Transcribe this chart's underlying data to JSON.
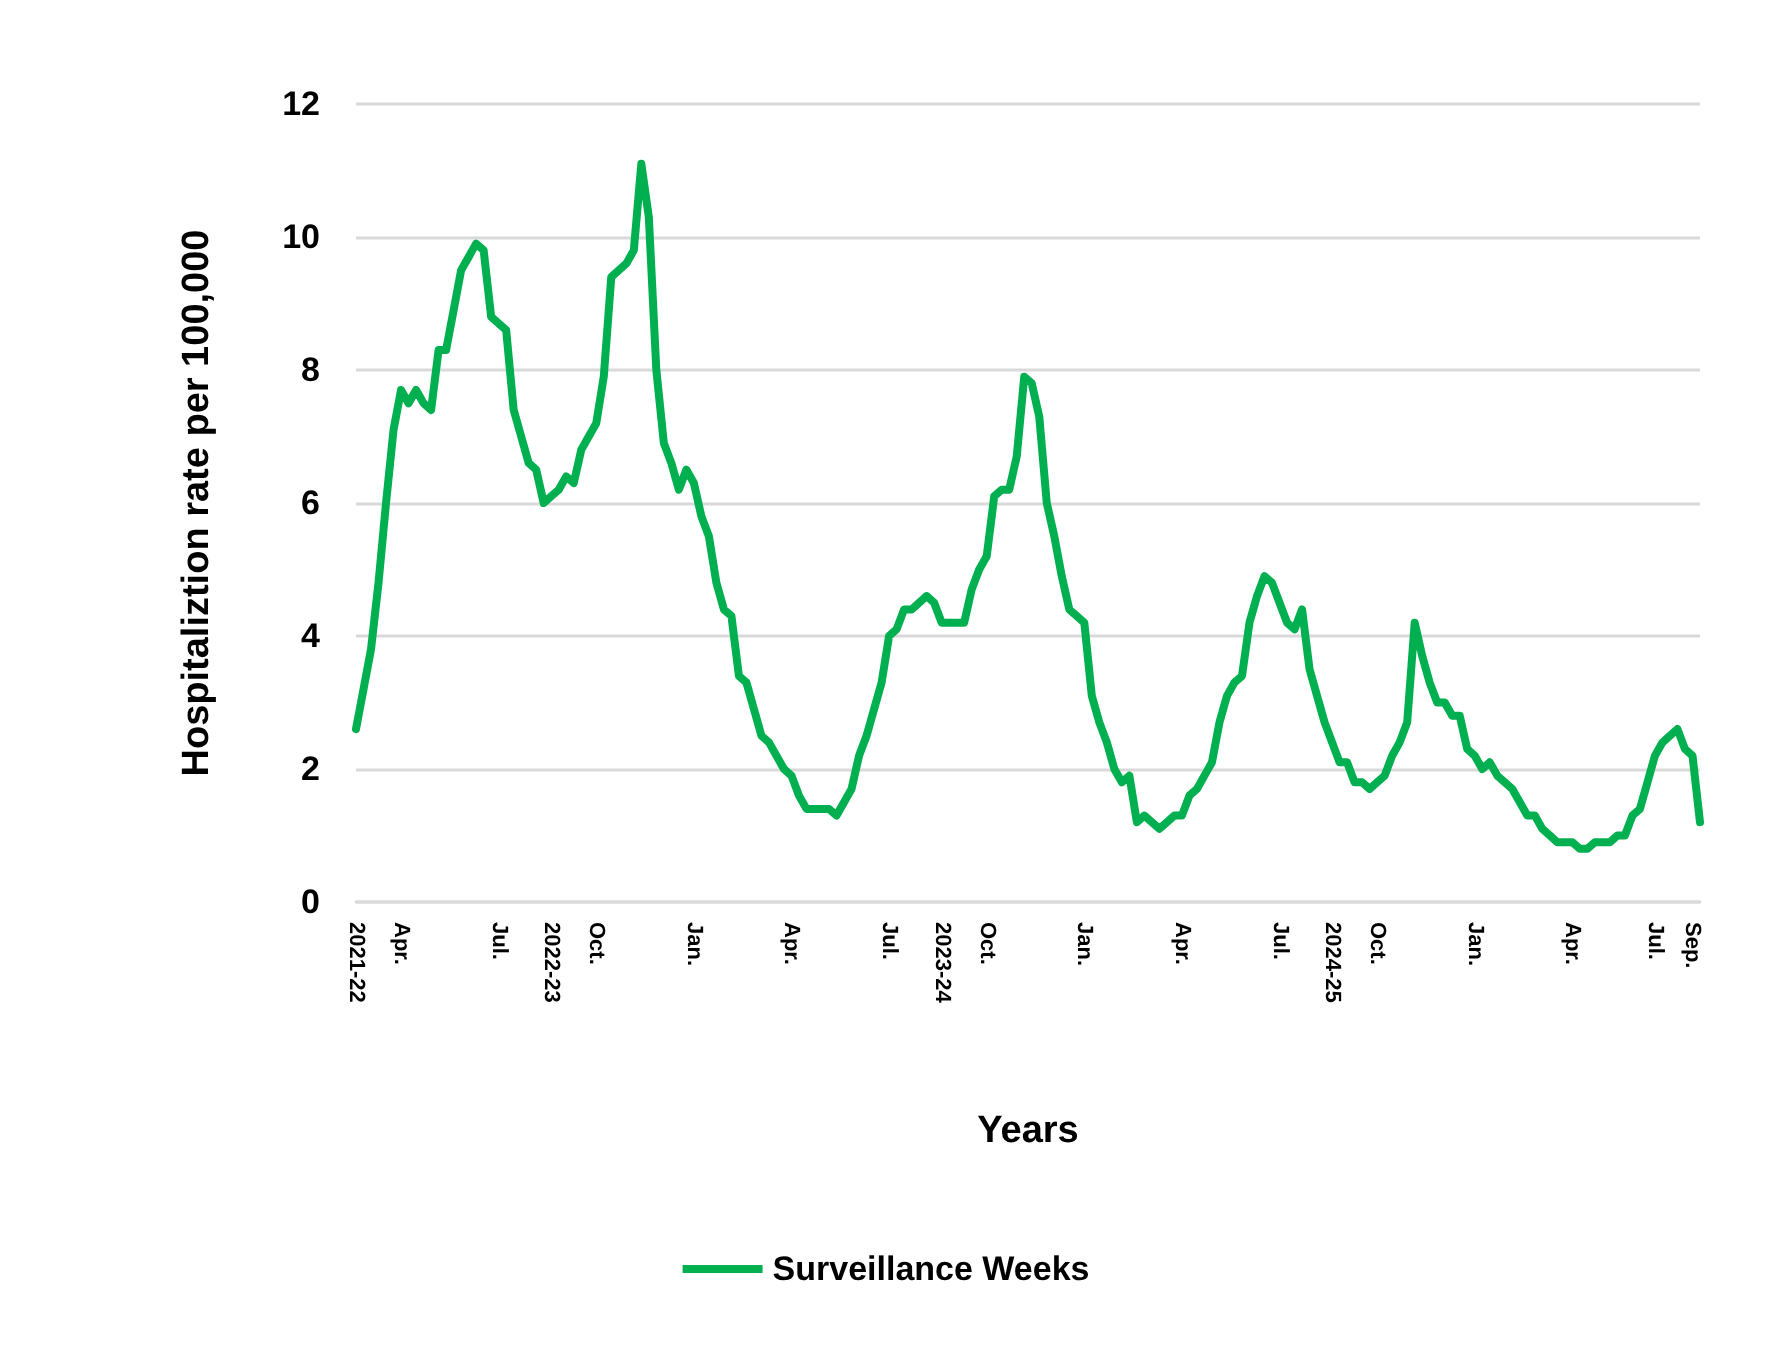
{
  "chart_data": {
    "type": "line",
    "xlabel": "Years",
    "ylabel": "Hospitaliztion rate per 100,000",
    "categories": [
      "2021-22",
      null,
      null,
      null,
      null,
      null,
      "Apr.",
      null,
      null,
      null,
      null,
      null,
      null,
      null,
      null,
      null,
      null,
      null,
      null,
      "Jul.",
      null,
      null,
      null,
      null,
      null,
      null,
      "2022-23",
      null,
      null,
      null,
      null,
      null,
      "Oct.",
      null,
      null,
      null,
      null,
      null,
      null,
      null,
      null,
      null,
      null,
      null,
      null,
      "Jan.",
      null,
      null,
      null,
      null,
      null,
      null,
      null,
      null,
      null,
      null,
      null,
      null,
      "Apr.",
      null,
      null,
      null,
      null,
      null,
      null,
      null,
      null,
      null,
      null,
      null,
      null,
      "Jul.",
      null,
      null,
      null,
      null,
      null,
      null,
      "2023-24",
      null,
      null,
      null,
      null,
      null,
      "Oct.",
      null,
      null,
      null,
      null,
      null,
      null,
      null,
      null,
      null,
      null,
      null,
      null,
      "Jan.",
      null,
      null,
      null,
      null,
      null,
      null,
      null,
      null,
      null,
      null,
      null,
      null,
      "Apr.",
      null,
      null,
      null,
      null,
      null,
      null,
      null,
      null,
      null,
      null,
      null,
      null,
      "Jul.",
      null,
      null,
      null,
      null,
      null,
      null,
      "2024-25",
      null,
      null,
      null,
      null,
      null,
      "Oct.",
      null,
      null,
      null,
      null,
      null,
      null,
      null,
      null,
      null,
      null,
      null,
      null,
      "Jan.",
      null,
      null,
      null,
      null,
      null,
      null,
      null,
      null,
      null,
      null,
      null,
      null,
      "Apr.",
      null,
      null,
      null,
      null,
      null,
      null,
      null,
      null,
      null,
      null,
      "Jul.",
      null,
      null,
      null,
      null,
      "Sep.",
      null
    ],
    "series": [
      {
        "name": "Surveillance Weeks",
        "color": "#00b050",
        "values": [
          2.6,
          3.2,
          3.8,
          4.8,
          6.0,
          7.1,
          7.7,
          7.5,
          7.7,
          7.5,
          7.4,
          8.3,
          8.3,
          8.9,
          9.5,
          9.7,
          9.9,
          9.8,
          8.8,
          8.7,
          8.6,
          7.4,
          7.0,
          6.6,
          6.5,
          6.0,
          6.1,
          6.2,
          6.4,
          6.3,
          6.8,
          7.0,
          7.2,
          7.9,
          9.4,
          9.5,
          9.6,
          9.8,
          11.1,
          10.3,
          8.0,
          6.9,
          6.6,
          6.2,
          6.5,
          6.3,
          5.8,
          5.5,
          4.8,
          4.4,
          4.3,
          3.4,
          3.3,
          2.9,
          2.5,
          2.4,
          2.2,
          2.0,
          1.9,
          1.6,
          1.4,
          1.4,
          1.4,
          1.4,
          1.3,
          1.5,
          1.7,
          2.2,
          2.5,
          2.9,
          3.3,
          4.0,
          4.1,
          4.4,
          4.4,
          4.5,
          4.6,
          4.5,
          4.2,
          4.2,
          4.2,
          4.2,
          4.7,
          5.0,
          5.2,
          6.1,
          6.2,
          6.2,
          6.7,
          7.9,
          7.8,
          7.3,
          6.0,
          5.5,
          4.9,
          4.4,
          4.3,
          4.2,
          3.1,
          2.7,
          2.4,
          2.0,
          1.8,
          1.9,
          1.2,
          1.3,
          1.2,
          1.1,
          1.2,
          1.3,
          1.3,
          1.6,
          1.7,
          1.9,
          2.1,
          2.7,
          3.1,
          3.3,
          3.4,
          4.2,
          4.6,
          4.9,
          4.8,
          4.5,
          4.2,
          4.1,
          4.4,
          3.5,
          3.1,
          2.7,
          2.4,
          2.1,
          2.1,
          1.8,
          1.8,
          1.7,
          1.8,
          1.9,
          2.2,
          2.4,
          2.7,
          4.2,
          3.7,
          3.3,
          3.0,
          3.0,
          2.8,
          2.8,
          2.3,
          2.2,
          2.0,
          2.1,
          1.9,
          1.8,
          1.7,
          1.5,
          1.3,
          1.3,
          1.1,
          1.0,
          0.9,
          0.9,
          0.9,
          0.8,
          0.8,
          0.9,
          0.9,
          0.9,
          1.0,
          1.0,
          1.3,
          1.4,
          1.8,
          2.2,
          2.4,
          2.5,
          2.6,
          2.3,
          2.2,
          1.2
        ]
      }
    ],
    "ylim": [
      0,
      12
    ],
    "yticks": [
      0,
      2,
      4,
      6,
      8,
      10,
      12
    ],
    "grid": "y",
    "legend": "bottom",
    "marker": "none",
    "line_style": "solid"
  }
}
